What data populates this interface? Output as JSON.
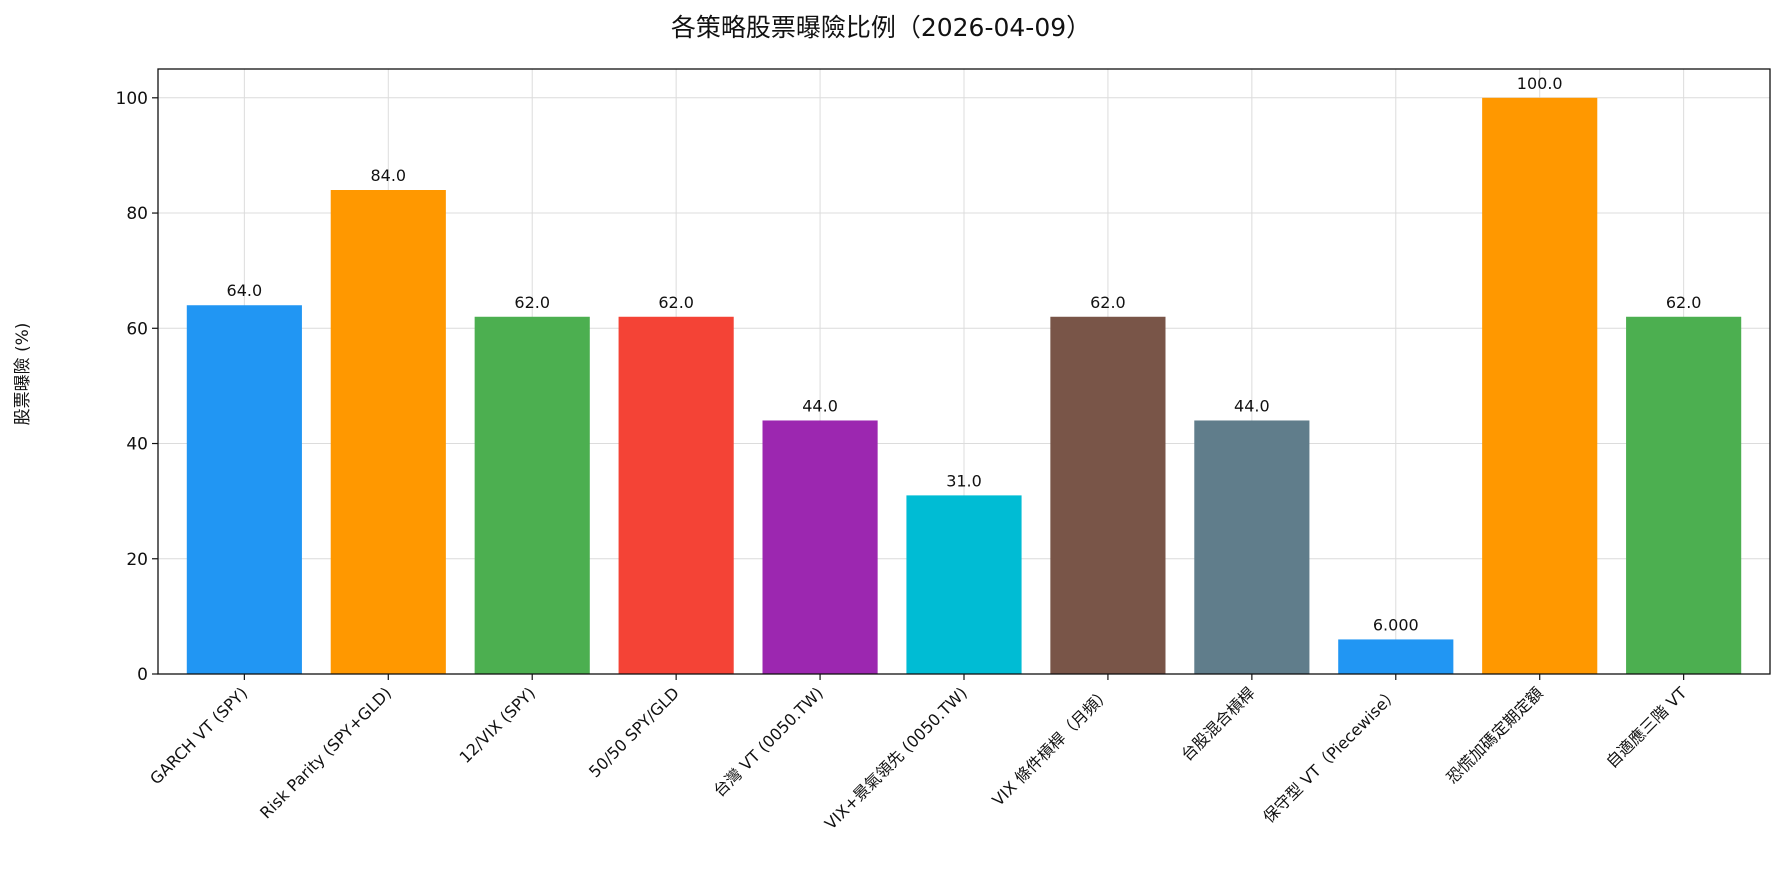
{
  "chart_data": {
    "type": "bar",
    "title": "各策略股票曝險比例（2026-04-09）",
    "ylabel": "股票曝險 (%)",
    "xlabel": "",
    "ylim": [
      0,
      105
    ],
    "yticks": [
      0,
      20,
      40,
      60,
      80,
      100
    ],
    "grid": true,
    "categories": [
      "GARCH VT (SPY)",
      "Risk Parity (SPY+GLD)",
      "12/VIX (SPY)",
      "50/50 SPY/GLD",
      "台灣 VT (0050.TW)",
      "VIX+景氣領先 (0050.TW)",
      "VIX 條件槓桿（月頻）",
      "台股混合槓桿",
      "保守型 VT（Piecewise）",
      "恐慌加碼定期定額",
      "自適應三階 VT"
    ],
    "values": [
      64.0,
      84.0,
      62.0,
      62.0,
      44.0,
      31.0,
      62.0,
      44.0,
      6.0,
      100.0,
      62.0
    ],
    "data_labels": [
      "64.0",
      "84.0",
      "62.0",
      "62.0",
      "44.0",
      "31.0",
      "62.0",
      "44.0",
      "6.000",
      "100.0",
      "62.0"
    ],
    "colors": [
      "#2196F3",
      "#FF9800",
      "#4CAF50",
      "#F44336",
      "#9C27B0",
      "#00BCD4",
      "#795548",
      "#607D8B",
      "#2196F3",
      "#FF9800",
      "#4CAF50"
    ]
  }
}
